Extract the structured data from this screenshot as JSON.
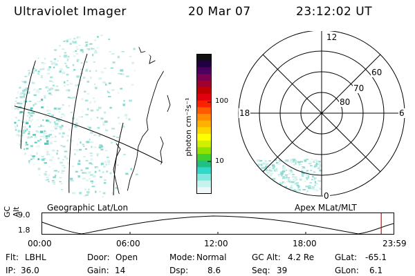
{
  "header": {
    "instrument": "Ultraviolet Imager",
    "date": "20 Mar 07",
    "time": "23:12:02 UT"
  },
  "colorbar": {
    "label": "photon cm⁻²s⁻¹",
    "ticks": [
      "100",
      "10"
    ],
    "colors": [
      "#101010",
      "#200040",
      "#4b0060",
      "#7a0050",
      "#a00030",
      "#c00000",
      "#e00010",
      "#ff2000",
      "#ff5a00",
      "#ff8c00",
      "#ffb000",
      "#ffd500",
      "#ffff00",
      "#d0f000",
      "#90e000",
      "#40d030",
      "#20c080",
      "#30d8c8",
      "#80e8e0",
      "#c8f2ee",
      "#eef8f8"
    ]
  },
  "left_map": {
    "title": "Geographic Lat/Lon"
  },
  "right_map": {
    "title": "Apex  MLat/MLT",
    "mlt_labels": {
      "top": "12",
      "left": "18",
      "right": "6",
      "bottom": "0"
    },
    "mlat_labels": [
      "60",
      "70",
      "80"
    ]
  },
  "altitude_plot": {
    "ylabel": "GC Alt",
    "ymax": "9.0",
    "ymin": "1.8",
    "xticks": [
      "00:00",
      "06:00",
      "12:00",
      "18:00",
      "23:59"
    ],
    "current_marker_fraction": 0.965,
    "marker_color": "#e00000"
  },
  "status": {
    "row1": [
      {
        "label": "Flt:",
        "value": "LBHL"
      },
      {
        "label": "Door:",
        "value": "Open"
      },
      {
        "label": "Mode:",
        "value": "Normal"
      },
      {
        "label": "GC Alt:",
        "value": "4.2 Re"
      },
      {
        "label": "GLat:",
        "value": "-65.1"
      }
    ],
    "row2": [
      {
        "label": "IP:",
        "value": "36.0"
      },
      {
        "label": "Gain:",
        "value": "14"
      },
      {
        "label": "Dsp:",
        "value": "8.6"
      },
      {
        "label": "Seq:",
        "value": "39"
      },
      {
        "label": "GLon:",
        "value": "6.1"
      }
    ]
  }
}
